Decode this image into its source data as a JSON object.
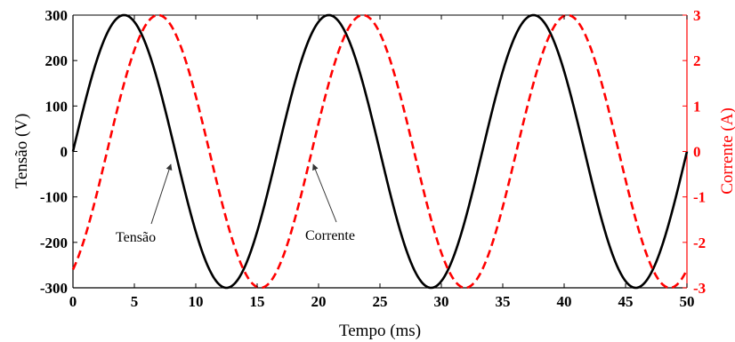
{
  "chart_data": {
    "type": "line",
    "xlabel": "Tempo (ms)",
    "ylabel_left": "Tensão (V)",
    "ylabel_right": "Corrente (A)",
    "xlim": [
      0,
      50
    ],
    "ylim_left": [
      -300,
      300
    ],
    "ylim_right": [
      -3,
      3
    ],
    "x_ticks": [
      0,
      5,
      10,
      15,
      20,
      25,
      30,
      35,
      40,
      45,
      50
    ],
    "y_left_ticks": [
      300,
      200,
      100,
      0,
      -100,
      -200,
      -300
    ],
    "y_right_ticks": [
      3,
      2,
      1,
      0,
      -1,
      -2,
      -3
    ],
    "grid": false,
    "series": [
      {
        "name": "Tensão",
        "axis": "left",
        "color": "#000000",
        "style": "solid",
        "amplitude": 300,
        "period_ms": 16.667,
        "phase_deg": 0
      },
      {
        "name": "Corrente",
        "axis": "right",
        "color": "#ff0000",
        "style": "dashed",
        "amplitude": 3,
        "period_ms": 16.667,
        "phase_deg": -60
      }
    ],
    "annotations": [
      {
        "text": "Tensão",
        "x": 8.3,
        "y": -30
      },
      {
        "text": "Corrente",
        "x": 19.6,
        "y": -30
      }
    ],
    "axis_colors": {
      "left": "#000000",
      "right": "#ff0000"
    }
  }
}
